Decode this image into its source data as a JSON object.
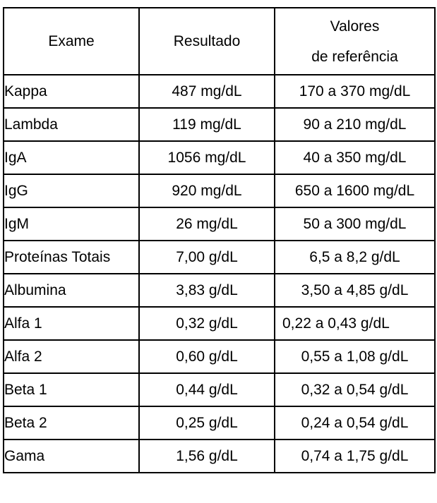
{
  "table": {
    "headers": {
      "exam": "Exame",
      "result": "Resultado",
      "reference_line1": "Valores",
      "reference_line2": "de referência"
    },
    "rows": [
      {
        "exam": "Kappa",
        "result": "487 mg/dL",
        "reference": "170 a 370 mg/dL"
      },
      {
        "exam": "Lambda",
        "result": "119 mg/dL",
        "reference": "90 a 210 mg/dL"
      },
      {
        "exam": "IgA",
        "result": "1056 mg/dL",
        "reference": "40 a 350 mg/dL"
      },
      {
        "exam": "IgG",
        "result": "920 mg/dL",
        "reference": "650 a 1600 mg/dL"
      },
      {
        "exam": "IgM",
        "result": "26 mg/dL",
        "reference": "50 a 300 mg/dL"
      },
      {
        "exam": "Proteínas Totais",
        "result": "7,00 g/dL",
        "reference": "6,5 a 8,2 g/dL"
      },
      {
        "exam": "Albumina",
        "result": "3,83 g/dL",
        "reference": "3,50 a 4,85 g/dL"
      },
      {
        "exam": "Alfa 1",
        "result": "0,32 g/dL",
        "reference": "0,22 a 0,43 g/dL"
      },
      {
        "exam": "Alfa 2",
        "result": "0,60 g/dL",
        "reference": "0,55 a 1,08 g/dL"
      },
      {
        "exam": "Beta 1",
        "result": "0,44 g/dL",
        "reference": "0,32 a 0,54 g/dL"
      },
      {
        "exam": "Beta 2",
        "result": "0,25 g/dL",
        "reference": "0,24 a 0,54 g/dL"
      },
      {
        "exam": "Gama",
        "result": "1,56 g/dL",
        "reference": "0,74 a 1,75 g/dL"
      }
    ]
  }
}
